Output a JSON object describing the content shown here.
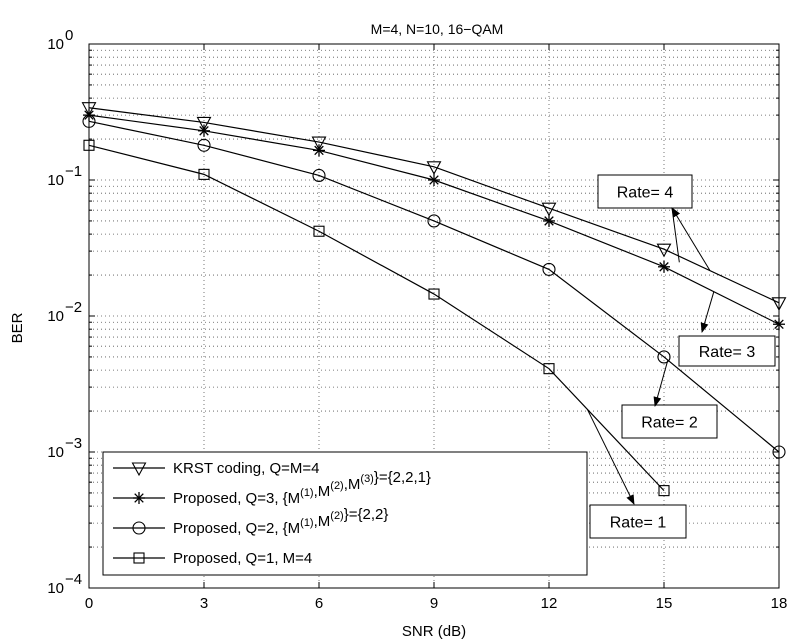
{
  "chart_data": {
    "type": "line",
    "title": "M=4, N=10, 16−QAM",
    "xlabel": "SNR (dB)",
    "ylabel": "BER",
    "xlim": [
      0,
      18
    ],
    "ylim": [
      0.0001,
      1
    ],
    "yscale": "log",
    "grid": true,
    "x_ticks": [
      "0",
      "3",
      "6",
      "9",
      "12",
      "15",
      "18"
    ],
    "x": [
      0,
      3,
      6,
      9,
      12,
      15,
      18
    ],
    "legend_position": "bottom-left",
    "series": [
      {
        "name": "KRST coding, Q=M=4",
        "marker": "triangle-down",
        "x": [
          0,
          3,
          6,
          9,
          12,
          15,
          18
        ],
        "values": [
          0.34,
          0.265,
          0.19,
          0.125,
          0.062,
          0.031,
          0.0125
        ]
      },
      {
        "name": "Proposed, Q=3, {M(1),M(2),M(3)}={2,2,1}",
        "marker": "asterisk",
        "x": [
          0,
          3,
          6,
          9,
          12,
          15,
          18
        ],
        "values": [
          0.3,
          0.23,
          0.165,
          0.1,
          0.05,
          0.023,
          0.0087
        ]
      },
      {
        "name": "Proposed, Q=2, {M(1),M(2)}={2,2}",
        "marker": "circle",
        "x": [
          0,
          3,
          6,
          9,
          12,
          15,
          18
        ],
        "values": [
          0.27,
          0.18,
          0.108,
          0.05,
          0.022,
          0.005,
          0.001
        ]
      },
      {
        "name": "Proposed, Q=1, M=4",
        "marker": "square",
        "x": [
          0,
          3,
          6,
          9,
          12,
          15
        ],
        "values": [
          0.18,
          0.11,
          0.042,
          0.0145,
          0.0041,
          0.00052
        ]
      }
    ],
    "legend_rich": [
      [
        {
          "t": "KRST coding, Q=M=4"
        }
      ],
      [
        {
          "t": "Proposed, Q=3, {M"
        },
        {
          "t": "(1)",
          "sup": true
        },
        {
          "t": ",M"
        },
        {
          "t": "(2)",
          "sup": true
        },
        {
          "t": ",M"
        },
        {
          "t": "(3)",
          "sup": true
        },
        {
          "t": "}={2,2,1}"
        }
      ],
      [
        {
          "t": "Proposed, Q=2, {M"
        },
        {
          "t": "(1)",
          "sup": true
        },
        {
          "t": ",M"
        },
        {
          "t": "(2)",
          "sup": true
        },
        {
          "t": "}={2,2}"
        }
      ],
      [
        {
          "t": "Proposed, Q=1, M=4"
        }
      ]
    ],
    "annotations": [
      {
        "text": "Rate= 4",
        "series": 0
      },
      {
        "text": "Rate= 3",
        "series": 1
      },
      {
        "text": "Rate= 2",
        "series": 2
      },
      {
        "text": "Rate= 1",
        "series": 3
      }
    ]
  }
}
